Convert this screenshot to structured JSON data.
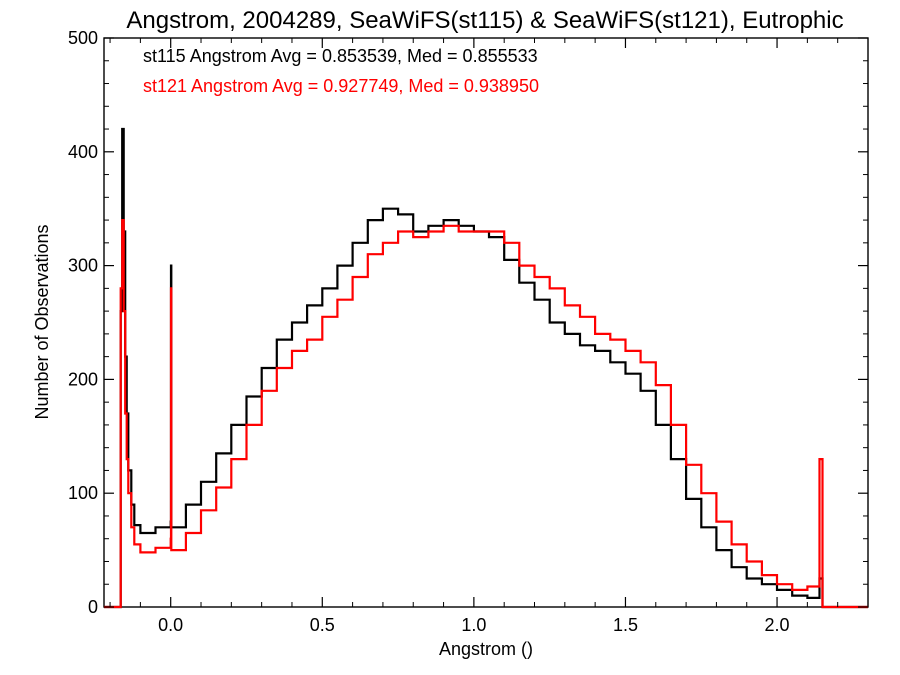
{
  "chart_data": {
    "type": "line",
    "title": "Angstrom, 2004289, SeaWiFS(st115) & SeaWiFS(st121), Eutrophic",
    "xlabel": "Angstrom ()",
    "ylabel": "Number of Observations",
    "xlim": [
      -0.22,
      2.3
    ],
    "ylim": [
      0,
      500
    ],
    "xticks": [
      "0.0",
      "0.5",
      "1.0",
      "1.5",
      "2.0"
    ],
    "xtick_values": [
      0.0,
      0.5,
      1.0,
      1.5,
      2.0
    ],
    "yticks": [
      "0",
      "100",
      "200",
      "300",
      "400",
      "500"
    ],
    "ytick_values": [
      0,
      100,
      200,
      300,
      400,
      500
    ],
    "grid": false,
    "annotations": [
      {
        "text": "st115 Angstrom Avg = 0.853539, Med = 0.855533",
        "color": "#000000"
      },
      {
        "text": "st121 Angstrom Avg = 0.927749, Med = 0.938950",
        "color": "#ff0000"
      }
    ],
    "series": [
      {
        "color": "#000000",
        "x": [
          -0.22,
          -0.17,
          -0.165,
          -0.16,
          -0.155,
          -0.15,
          -0.145,
          -0.14,
          -0.13,
          -0.12,
          -0.1,
          -0.05,
          0.0,
          0.001,
          0.002,
          0.05,
          0.1,
          0.15,
          0.2,
          0.25,
          0.3,
          0.35,
          0.4,
          0.45,
          0.5,
          0.55,
          0.6,
          0.65,
          0.7,
          0.75,
          0.8,
          0.85,
          0.9,
          0.95,
          1.0,
          1.05,
          1.1,
          1.15,
          1.2,
          1.25,
          1.3,
          1.35,
          1.4,
          1.45,
          1.5,
          1.55,
          1.6,
          1.65,
          1.7,
          1.75,
          1.8,
          1.85,
          1.9,
          1.95,
          2.0,
          2.05,
          2.1,
          2.14,
          2.15,
          2.16,
          2.18,
          2.3
        ],
        "y": [
          0,
          0,
          260,
          420,
          330,
          220,
          170,
          120,
          90,
          72,
          65,
          70,
          75,
          300,
          70,
          90,
          110,
          135,
          160,
          185,
          210,
          235,
          250,
          265,
          280,
          300,
          320,
          340,
          350,
          345,
          330,
          335,
          340,
          335,
          330,
          325,
          305,
          285,
          270,
          250,
          240,
          230,
          225,
          215,
          205,
          190,
          160,
          130,
          95,
          70,
          50,
          35,
          25,
          20,
          15,
          10,
          8,
          25,
          0,
          0,
          0,
          0
        ]
      },
      {
        "color": "#ff0000",
        "x": [
          -0.22,
          -0.17,
          -0.165,
          -0.16,
          -0.155,
          -0.15,
          -0.145,
          -0.14,
          -0.13,
          -0.12,
          -0.1,
          -0.05,
          0.0,
          0.001,
          0.002,
          0.05,
          0.1,
          0.15,
          0.2,
          0.25,
          0.3,
          0.35,
          0.4,
          0.45,
          0.5,
          0.55,
          0.6,
          0.65,
          0.7,
          0.75,
          0.8,
          0.85,
          0.9,
          0.95,
          1.0,
          1.05,
          1.1,
          1.15,
          1.2,
          1.25,
          1.3,
          1.35,
          1.4,
          1.45,
          1.5,
          1.55,
          1.6,
          1.65,
          1.7,
          1.75,
          1.8,
          1.85,
          1.9,
          1.95,
          2.0,
          2.05,
          2.1,
          2.14,
          2.15,
          2.16,
          2.18,
          2.3
        ],
        "y": [
          0,
          0,
          280,
          340,
          260,
          170,
          130,
          100,
          70,
          55,
          48,
          52,
          60,
          280,
          50,
          65,
          85,
          105,
          130,
          160,
          190,
          210,
          225,
          235,
          255,
          270,
          290,
          310,
          320,
          330,
          325,
          330,
          335,
          330,
          330,
          330,
          320,
          300,
          290,
          280,
          265,
          255,
          240,
          235,
          225,
          215,
          195,
          160,
          125,
          100,
          75,
          55,
          40,
          28,
          20,
          15,
          18,
          130,
          0,
          0,
          0,
          0
        ]
      }
    ]
  }
}
